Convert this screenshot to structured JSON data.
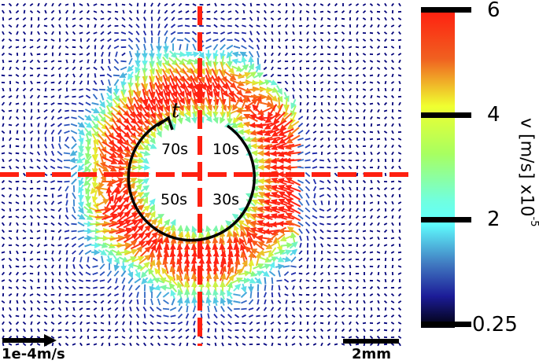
{
  "chart_data": {
    "type": "quiver",
    "title": "",
    "description": "Velocity vector field around a central region divided into four quadrants, with vortices along the boundary; arrows colored by speed",
    "colorbar": {
      "label": "v [m/s] x10",
      "exponent": "-5",
      "colormap": "jet",
      "ticks": [
        6,
        4,
        2,
        0.25
      ],
      "tick_labels": [
        "6",
        "4",
        "2",
        "0.25"
      ],
      "range": [
        0.25,
        6
      ],
      "colors": [
        "#ff2010",
        "#f08020",
        "#f0f030",
        "#a0ff60",
        "#70ffd0",
        "#60ffff",
        "#4090c8",
        "#2030a0",
        "#100070",
        "#000010"
      ]
    },
    "annotations": {
      "time_symbol": "t",
      "quadrant_times": [
        {
          "quadrant": "top-right",
          "label": "10s"
        },
        {
          "quadrant": "bottom-right",
          "label": "30s"
        },
        {
          "quadrant": "bottom-left",
          "label": "50s"
        },
        {
          "quadrant": "top-left",
          "label": "70s"
        }
      ],
      "rotation": "clockwise",
      "guide_lines": "red dashed horizontal and vertical lines through center"
    },
    "scale_bars": {
      "velocity": "1e-4m/s",
      "length": "2mm"
    }
  },
  "labels": {
    "t": "t",
    "q10": "10s",
    "q30": "30s",
    "q50": "50s",
    "q70": "70s",
    "cb_6": "6",
    "cb_4": "4",
    "cb_2": "2",
    "cb_025": "0.25",
    "cb_title": "v [m/s] x10",
    "cb_exp": "-5",
    "velocity_scale": "1e-4m/s",
    "length_scale": "2mm"
  },
  "colors": {
    "guide_line": "#ff2010",
    "circle": "#000000",
    "bar": "#000000"
  }
}
